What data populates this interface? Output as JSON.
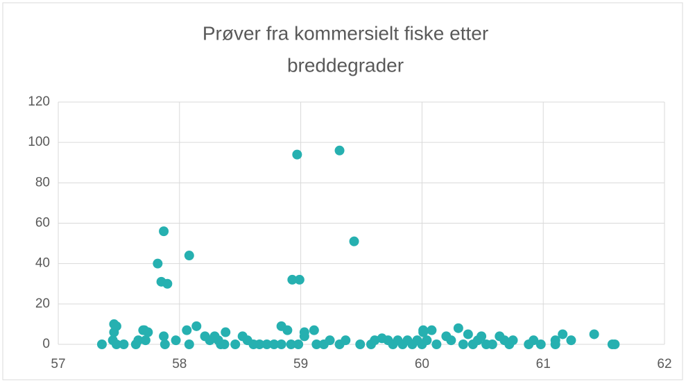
{
  "chart_data": {
    "type": "scatter",
    "title": [
      "Prøver fra kommersielt fiske etter",
      "breddegrader"
    ],
    "color": "#26b0b0",
    "xlim": [
      57,
      62
    ],
    "xticks": [
      57,
      58,
      59,
      60,
      61,
      62
    ],
    "ylim": [
      0,
      120
    ],
    "yticks": [
      0,
      20,
      40,
      60,
      80,
      100,
      120
    ],
    "grid": true,
    "x": [
      57.36,
      57.46,
      57.48,
      57.46,
      57.45,
      57.48,
      57.54,
      57.64,
      57.66,
      57.7,
      57.71,
      57.72,
      57.74,
      57.82,
      57.85,
      57.87,
      57.9,
      57.87,
      57.88,
      57.97,
      58.06,
      58.08,
      58.08,
      58.14,
      58.21,
      58.25,
      58.29,
      58.32,
      58.34,
      58.37,
      58.38,
      58.46,
      58.52,
      58.56,
      58.61,
      58.66,
      58.72,
      58.78,
      58.84,
      58.92,
      58.84,
      58.89,
      58.93,
      58.99,
      58.97,
      58.98,
      59.03,
      59.03,
      59.11,
      59.13,
      59.19,
      59.24,
      59.32,
      59.32,
      59.37,
      59.44,
      59.49,
      59.58,
      59.61,
      59.67,
      59.72,
      59.76,
      59.8,
      59.84,
      59.88,
      59.92,
      59.96,
      60.0,
      60.01,
      60.01,
      60.04,
      60.08,
      60.12,
      60.2,
      60.24,
      60.3,
      60.34,
      60.38,
      60.42,
      60.46,
      60.49,
      60.53,
      60.58,
      60.64,
      60.68,
      60.72,
      60.75,
      60.88,
      60.92,
      60.98,
      61.1,
      61.1,
      61.16,
      61.23,
      61.42,
      61.57,
      61.59
    ],
    "y": [
      0,
      10,
      9,
      6,
      2,
      0,
      0,
      0,
      2,
      7,
      7,
      2,
      6,
      40,
      31,
      56,
      30,
      4,
      0,
      2,
      7,
      44,
      0,
      9,
      4,
      2,
      4,
      2,
      0,
      0,
      6,
      0,
      4,
      2,
      0,
      0,
      0,
      0,
      0,
      0,
      9,
      7,
      32,
      32,
      94,
      0,
      4,
      6,
      7,
      0,
      0,
      2,
      96,
      0,
      2,
      51,
      0,
      0,
      2,
      3,
      2,
      0,
      2,
      0,
      2,
      0,
      2,
      0,
      6,
      7,
      2,
      7,
      0,
      4,
      2,
      8,
      0,
      5,
      0,
      2,
      4,
      0,
      0,
      4,
      2,
      0,
      2,
      0,
      2,
      0,
      0,
      2,
      5,
      2,
      5,
      0,
      0
    ]
  }
}
